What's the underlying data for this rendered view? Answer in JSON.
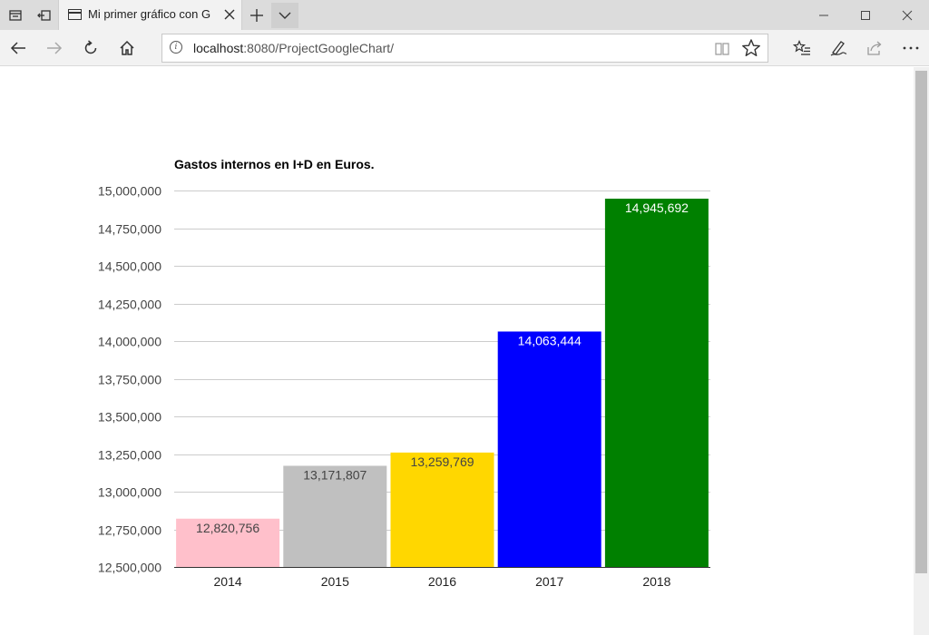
{
  "browser": {
    "tab": {
      "title": "Mi primer gráfico con G"
    },
    "address": {
      "host": "localhost",
      "rest": ":8080/ProjectGoogleChart/"
    },
    "icons": {
      "tab_actions_left": "tabs-aside-icon",
      "tab_actions_right": "restore-tabs-icon",
      "close": "close-icon",
      "new_tab": "plus-icon",
      "tab_list": "chevron-down-icon",
      "minimize": "minimize-icon",
      "maximize": "maximize-icon",
      "window_close": "close-icon",
      "back": "back-arrow-icon",
      "forward": "forward-arrow-icon",
      "refresh": "refresh-icon",
      "home": "home-icon",
      "info": "info-icon",
      "reading_view": "reading-view-icon",
      "favorite": "star-icon",
      "favorites_hub": "favorites-list-icon",
      "notes": "pen-icon",
      "share": "share-icon",
      "more": "more-icon"
    }
  },
  "chart_data": {
    "type": "bar",
    "title": "Gastos internos en I+D en Euros.",
    "categories": [
      "2014",
      "2015",
      "2016",
      "2017",
      "2018"
    ],
    "values": [
      12820756,
      13171807,
      13259769,
      14063444,
      14945692
    ],
    "value_labels": [
      "12,820,756",
      "13,171,807",
      "13,259,769",
      "14,063,444",
      "14,945,692"
    ],
    "bar_colors": [
      "#ffc0cb",
      "#c0c0c0",
      "#ffd700",
      "#0000ff",
      "#008000"
    ],
    "label_colors": [
      "#444444",
      "#444444",
      "#444444",
      "#ffffff",
      "#ffffff"
    ],
    "yticks": [
      12500000,
      12750000,
      13000000,
      13250000,
      13500000,
      13750000,
      14000000,
      14250000,
      14500000,
      14750000,
      15000000
    ],
    "ytick_labels": [
      "12,500,000",
      "12,750,000",
      "13,000,000",
      "13,250,000",
      "13,500,000",
      "13,750,000",
      "14,000,000",
      "14,250,000",
      "14,500,000",
      "14,750,000",
      "15,000,000"
    ],
    "ylim": [
      12500000,
      15000000
    ],
    "grid": true,
    "legend": "none"
  }
}
